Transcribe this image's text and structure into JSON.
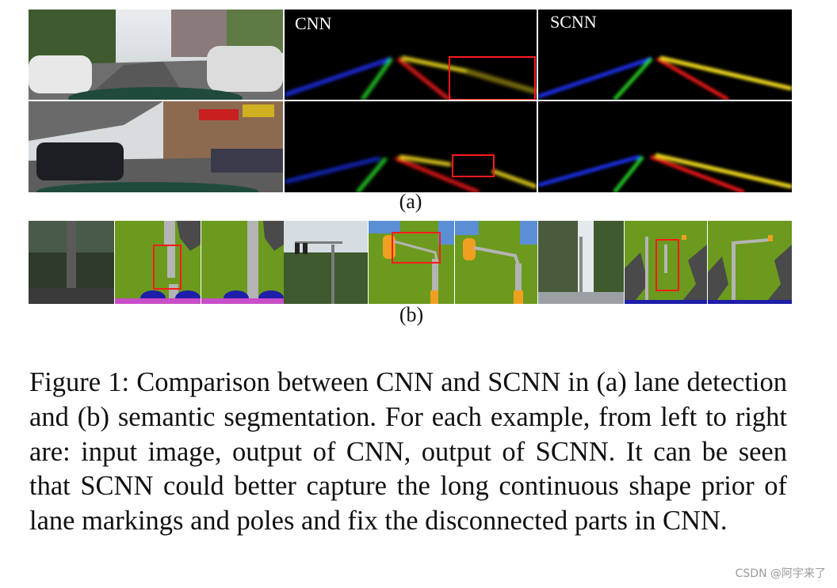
{
  "figure": {
    "col_labels": {
      "cnn": "CNN",
      "scnn": "SCNN"
    },
    "panel_labels": {
      "a": "(a)",
      "b": "(b)"
    },
    "caption": "Figure 1: Comparison between CNN and SCNN in (a) lane detection and (b) semantic segmentation. For each example, from left to right are: input image, output of CNN, output of SCNN. It can be seen that SCNN could better capture the long continuous shape prior of lane markings and poles and fix the disconnected parts in CNN."
  },
  "watermark": "CSDN @阿宇来了",
  "colors": {
    "lane_blue": "#1a2ee6",
    "lane_green": "#22c022",
    "lane_red": "#e01818",
    "lane_yellow": "#e8d21a",
    "highlight_box": "#ff1a1a",
    "seg_vegetation": "#6b9a1e",
    "seg_pole": "#b4b4b4",
    "seg_car": "#1e1ea8",
    "seg_sky": "#5a8fd6",
    "seg_sign": "#f0a020",
    "seg_building": "#4a4a4a"
  }
}
